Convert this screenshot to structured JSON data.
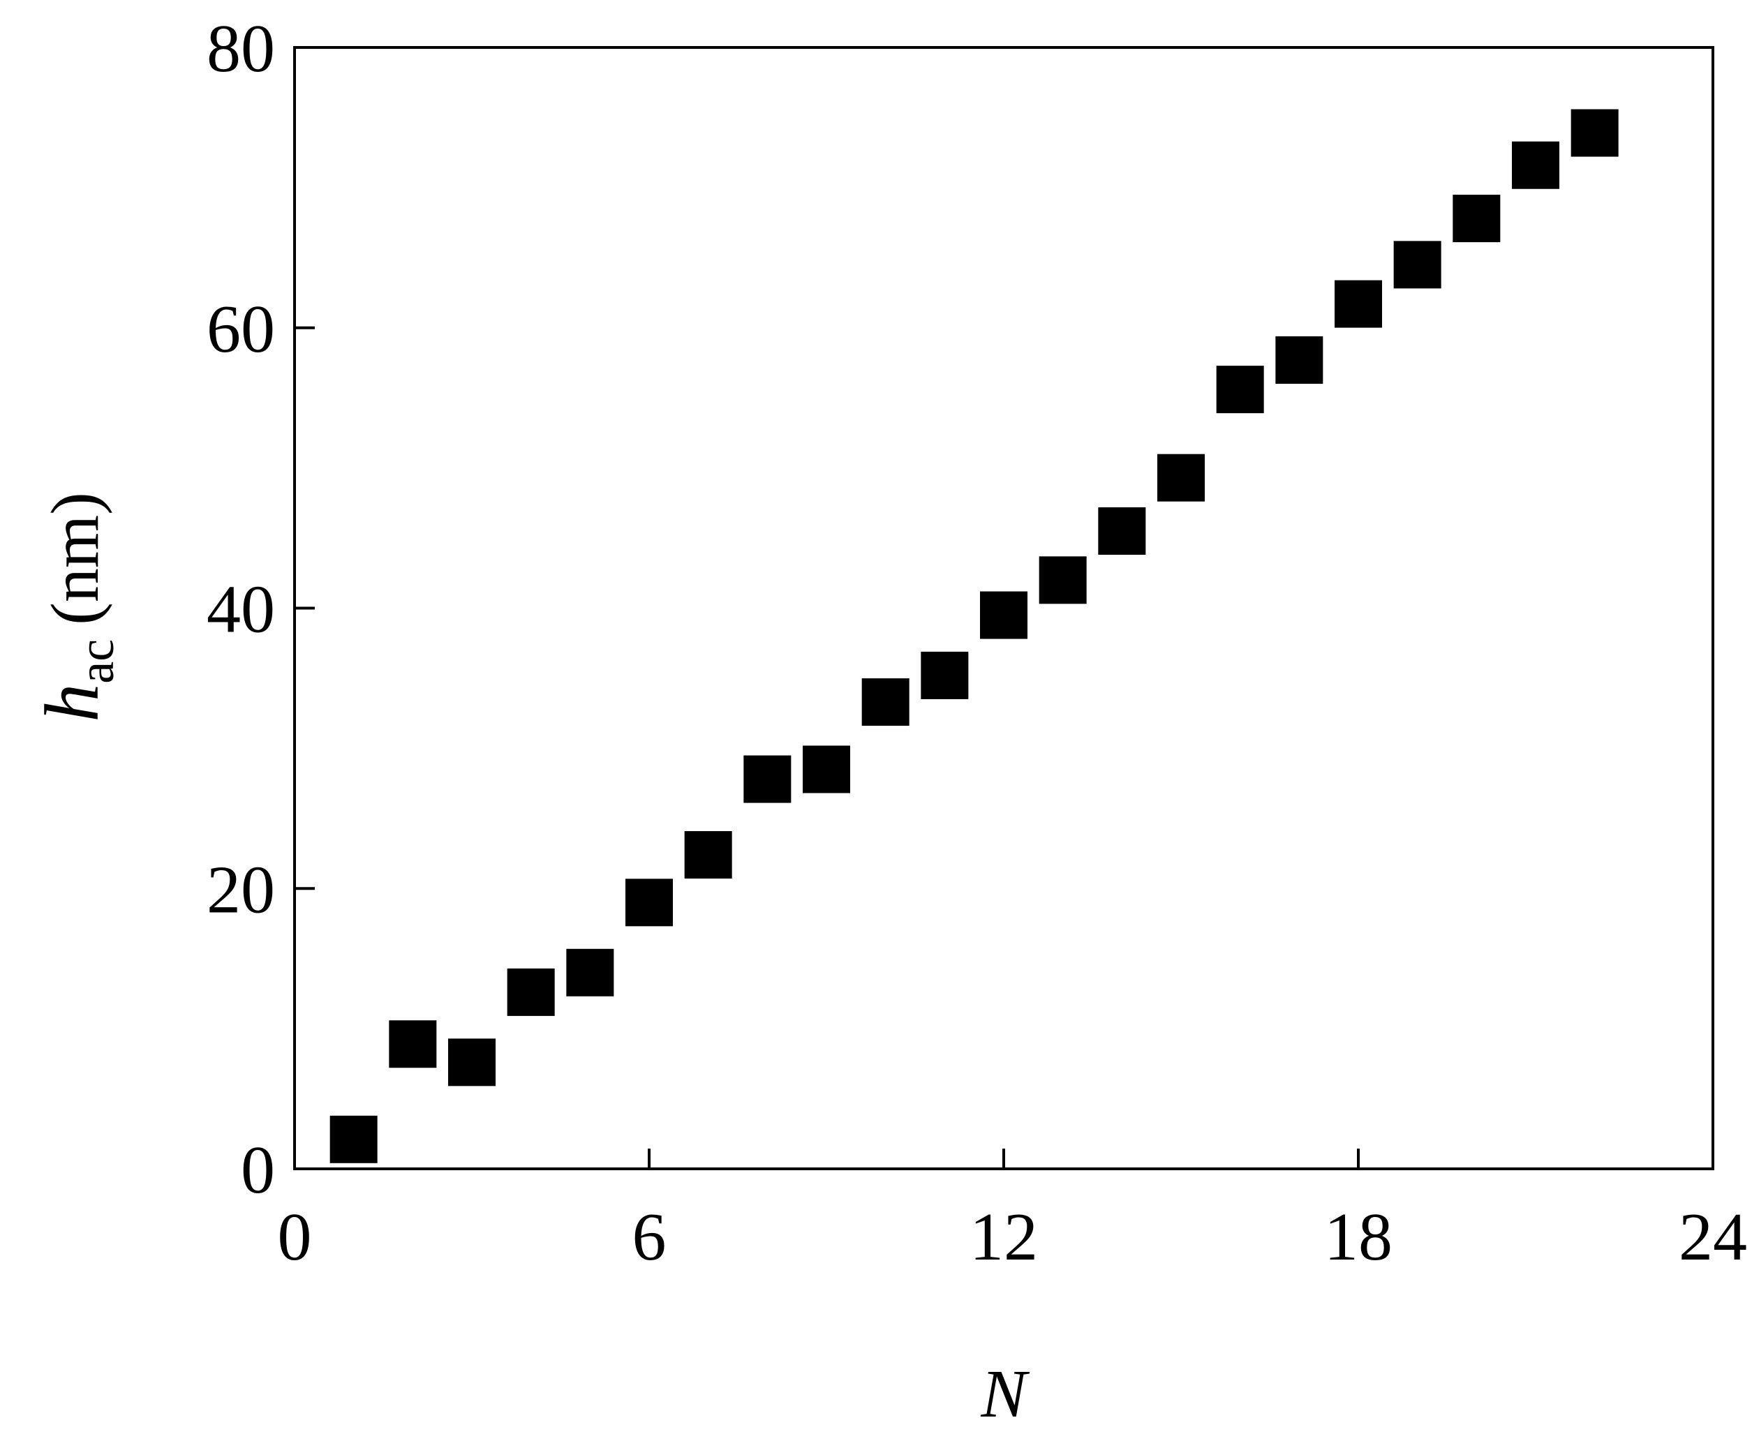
{
  "chart_data": {
    "type": "scatter",
    "xlabel": "N",
    "ylabel": "h",
    "ylabel_sub": "ac",
    "ylabel_unit": "(nm)",
    "x": [
      1,
      2,
      3,
      4,
      5,
      6,
      7,
      8,
      9,
      10,
      11,
      12,
      13,
      14,
      15,
      16,
      17,
      18,
      19,
      20,
      21,
      22
    ],
    "values": [
      2.1,
      8.9,
      7.6,
      12.6,
      14.0,
      19.0,
      22.4,
      27.8,
      28.5,
      33.3,
      35.2,
      39.5,
      42.0,
      45.5,
      49.3,
      55.6,
      57.7,
      61.7,
      64.5,
      67.8,
      71.6,
      73.9
    ],
    "color": "#000000",
    "marker": "square",
    "xlim": [
      0,
      24
    ],
    "xticks": [
      0,
      6,
      12,
      18,
      24
    ],
    "ylim": [
      0,
      80
    ],
    "yticks": [
      0,
      20,
      40,
      60,
      80
    ],
    "grid": false
  }
}
